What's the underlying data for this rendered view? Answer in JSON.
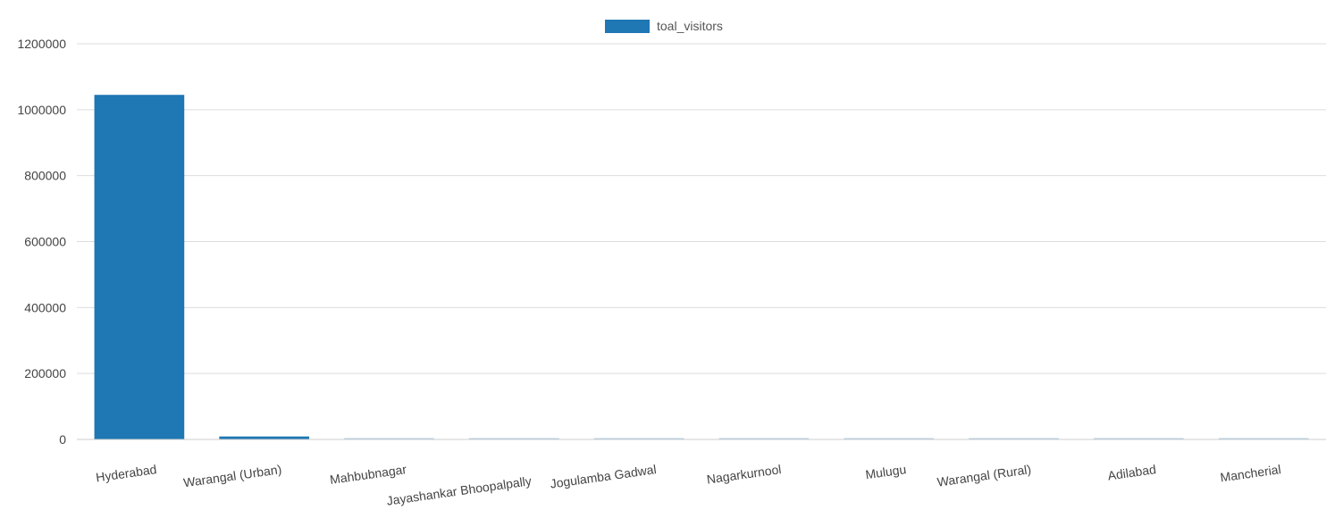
{
  "chart_data": {
    "type": "bar",
    "categories": [
      "Hyderabad",
      "Warangal (Urban)",
      "Mahbubnagar",
      "Jayashankar Bhoopalpally",
      "Jogulamba Gadwal",
      "Nagarkurnool",
      "Mulugu",
      "Warangal (Rural)",
      "Adilabad",
      "Mancherial"
    ],
    "series": [
      {
        "name": "toal_visitors",
        "color": "#1f77b4",
        "values": [
          1045000,
          9000,
          1200,
          900,
          800,
          700,
          600,
          500,
          400,
          300
        ]
      }
    ],
    "yticks": [
      0,
      200000,
      400000,
      600000,
      800000,
      1000000,
      1200000
    ],
    "ylim": [
      0,
      1200000
    ],
    "grid": true,
    "legend_position": "top-center",
    "title": "",
    "xlabel": "",
    "ylabel": ""
  }
}
